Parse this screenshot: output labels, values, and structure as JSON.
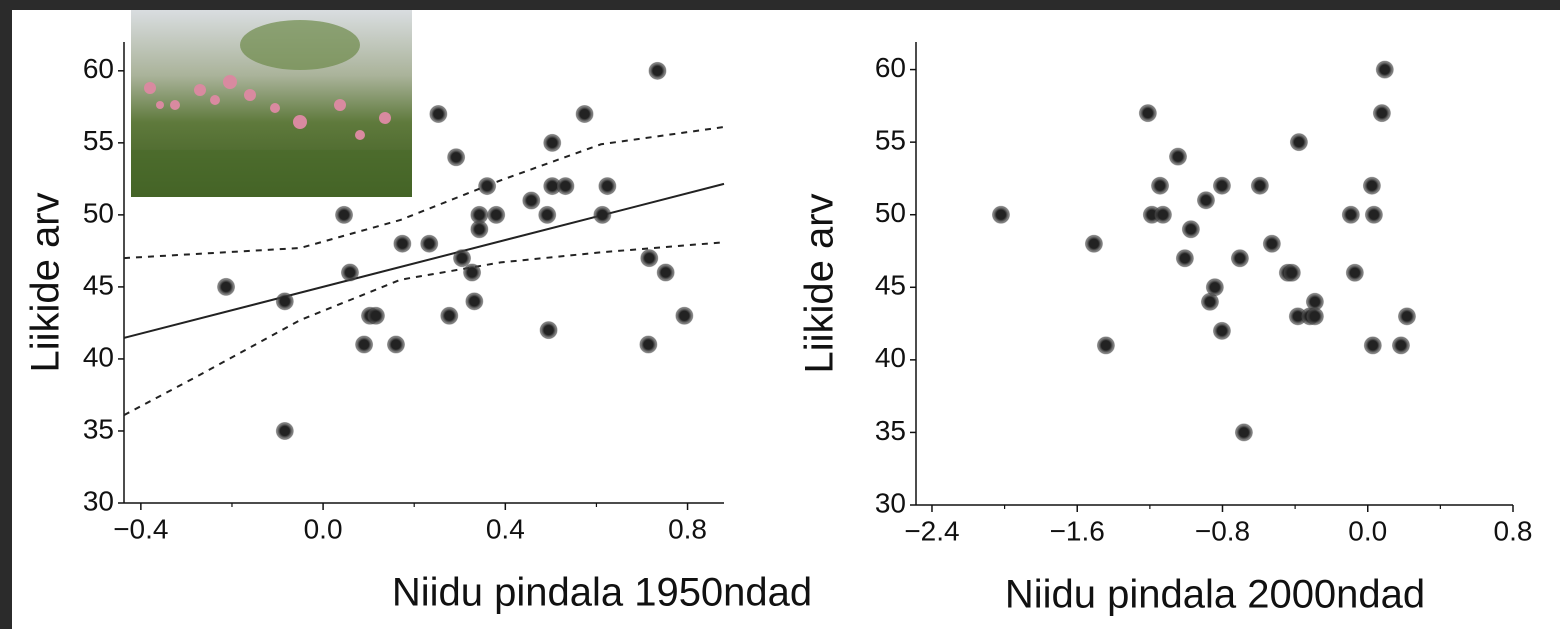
{
  "chart_data": [
    {
      "type": "scatter",
      "x_label": "Niidu pindala 1950ndad",
      "y_label": "Liikide arv",
      "color": "#222222",
      "xlim": [
        -0.437,
        0.88
      ],
      "ylim": [
        30,
        62
      ],
      "xticks": [
        {
          "value": -0.4,
          "label": "−0.4"
        },
        {
          "value": 0,
          "label": "0.0"
        },
        0.4,
        0.8
      ],
      "xminor_ticks": [
        -0.2,
        0.2,
        0.6
      ],
      "yticks": [
        30,
        35,
        40,
        45,
        50,
        55,
        60
      ],
      "x": [
        -0.213,
        -0.084,
        -0.084,
        0.046,
        0.059,
        0.09,
        0.103,
        0.116,
        0.16,
        0.174,
        0.233,
        0.253,
        0.277,
        0.292,
        0.305,
        0.327,
        0.332,
        0.343,
        0.343,
        0.36,
        0.38,
        0.457,
        0.492,
        0.495,
        0.503,
        0.503,
        0.532,
        0.574,
        0.613,
        0.624,
        0.714,
        0.716,
        0.734,
        0.752,
        0.793
      ],
      "values": [
        45,
        44,
        35,
        50,
        46,
        41,
        43,
        43,
        41,
        48,
        48,
        57,
        43,
        54,
        47,
        46,
        44,
        49,
        50,
        52,
        50,
        51,
        50,
        42,
        55,
        52,
        52,
        57,
        50,
        52,
        41,
        47,
        60,
        46,
        43
      ],
      "fit_line": {
        "x": [
          -0.437,
          0.88
        ],
        "values": [
          41.46,
          52.15
        ]
      },
      "confidence_upper": {
        "x": [
          -0.437,
          -0.05,
          0.17,
          0.39,
          0.61,
          0.88
        ],
        "values": [
          47.0,
          47.7,
          49.65,
          52.4,
          54.9,
          56.1
        ]
      },
      "confidence_lower": {
        "x": [
          -0.437,
          -0.27,
          -0.05,
          0.17,
          0.39,
          0.61,
          0.88
        ],
        "values": [
          36.1,
          38.9,
          42.7,
          45.5,
          46.7,
          47.4,
          48.1
        ]
      }
    },
    {
      "type": "scatter",
      "x_label": "Niidu pindala 2000ndad",
      "y_label": "Liikide arv",
      "color": "#222222",
      "xlim": [
        -2.488,
        0.8
      ],
      "ylim": [
        30,
        61.9
      ],
      "xticks": [
        {
          "value": -2.4,
          "label": "−2.4"
        },
        {
          "value": -1.6,
          "label": "−1.6"
        },
        {
          "value": -0.8,
          "label": "−0.8"
        },
        {
          "value": 0,
          "label": "0.0"
        },
        0.8
      ],
      "xminor_ticks": [
        -2.0,
        -1.2,
        -0.4,
        0.4
      ],
      "yticks": [
        30,
        35,
        40,
        45,
        50,
        55,
        60
      ],
      "x": [
        -2.02,
        -1.508,
        -1.442,
        -1.211,
        -1.189,
        -1.144,
        -1.128,
        -1.045,
        -0.974,
        -1.007,
        -0.891,
        -0.869,
        -0.842,
        -0.803,
        -0.803,
        -0.704,
        -0.682,
        -0.594,
        -0.528,
        -0.44,
        -0.418,
        -0.385,
        -0.379,
        -0.319,
        -0.291,
        -0.291,
        -0.093,
        -0.071,
        0.023,
        0.034,
        0.028,
        0.078,
        0.094,
        0.183,
        0.216
      ],
      "values": [
        50,
        48,
        41,
        57,
        50,
        52,
        50,
        54,
        49,
        47,
        51,
        44,
        45,
        42,
        52,
        47,
        35,
        52,
        48,
        46,
        46,
        43,
        55,
        43,
        44,
        43,
        50,
        46,
        52,
        50,
        41,
        57,
        60,
        41,
        43
      ]
    }
  ]
}
